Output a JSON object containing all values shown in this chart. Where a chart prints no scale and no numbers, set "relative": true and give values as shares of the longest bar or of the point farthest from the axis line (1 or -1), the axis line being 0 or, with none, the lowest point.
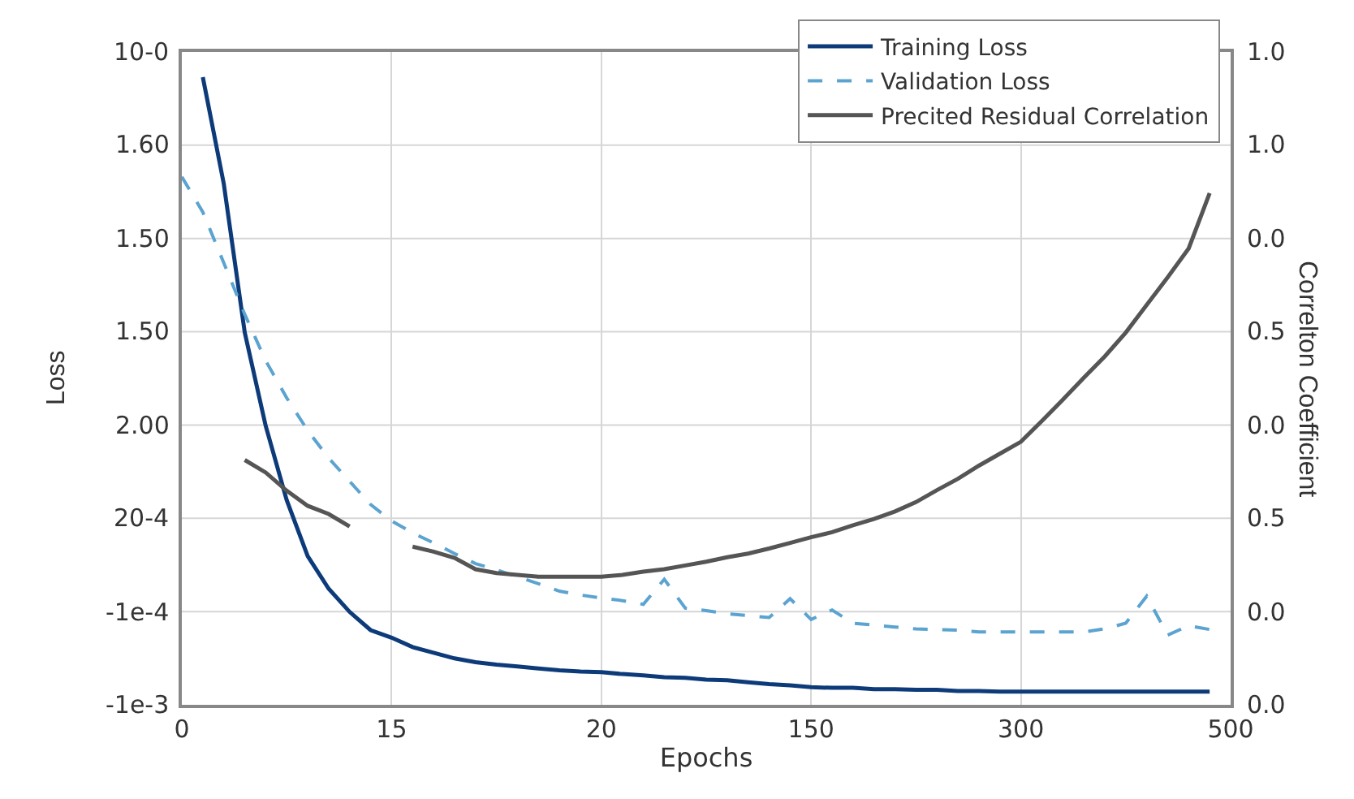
{
  "chart_data": {
    "type": "line",
    "xlabel": "Epochs",
    "ylabel": "Loss",
    "y2label": "Correlton Coefficient",
    "relative": true,
    "categories": [
      "0",
      null,
      null,
      null,
      null,
      null,
      null,
      null,
      null,
      null,
      "15",
      null,
      null,
      null,
      null,
      null,
      null,
      null,
      null,
      null,
      "20",
      null,
      null,
      null,
      null,
      null,
      null,
      null,
      null,
      null,
      "150",
      null,
      null,
      null,
      null,
      null,
      null,
      null,
      null,
      null,
      "300",
      null,
      null,
      null,
      null,
      null,
      null,
      null,
      null,
      null,
      "500"
    ],
    "annotations": [
      "10-0",
      "1.60",
      "1.50",
      "1.50",
      "2.00",
      "20-4",
      "-1e-4",
      "-1e-3",
      "1.0",
      "1.0",
      "0.0",
      "0.5",
      "0.0",
      "0.5",
      "0.0",
      "0.0"
    ],
    "grid": true,
    "legend": "top right",
    "marker": "none",
    "series": [
      {
        "name": "Training Loss",
        "color": "#0d3b7a",
        "line_style": "solid",
        "values": [
          null,
          1.0,
          0.83,
          0.593,
          0.444,
          0.326,
          0.237,
          0.185,
          0.148,
          0.119,
          0.107,
          0.092,
          0.083,
          0.074,
          0.068,
          0.064,
          0.061,
          0.058,
          0.055,
          0.053,
          0.052,
          0.049,
          0.047,
          0.044,
          0.043,
          0.04,
          0.039,
          0.036,
          0.033,
          0.031,
          0.028,
          0.027,
          0.027,
          0.025,
          0.025,
          0.024,
          0.024,
          0.022,
          0.022,
          0.021,
          0.021,
          0.021,
          0.021,
          0.021,
          0.021,
          0.021,
          0.021,
          0.021,
          0.021,
          0.021,
          null
        ]
      },
      {
        "name": "Validation Loss",
        "color": "#5ba3d0",
        "line_style": "dashed",
        "values": [
          0.841,
          0.785,
          0.704,
          0.622,
          0.548,
          0.489,
          0.437,
          0.393,
          0.356,
          0.319,
          0.293,
          0.274,
          0.258,
          0.241,
          0.225,
          0.215,
          0.204,
          0.193,
          0.181,
          0.175,
          0.17,
          0.166,
          0.16,
          0.2,
          0.154,
          0.15,
          0.145,
          0.142,
          0.139,
          0.169,
          0.136,
          0.151,
          0.13,
          0.127,
          0.124,
          0.121,
          0.12,
          0.119,
          0.116,
          0.116,
          0.116,
          0.116,
          0.116,
          0.116,
          0.121,
          0.13,
          0.173,
          0.111,
          0.126,
          0.12,
          null
        ]
      },
      {
        "name": "Precited Residual Correlation",
        "color": "#555555",
        "line_style": "solid",
        "values": [
          null,
          null,
          null,
          0.39,
          0.37,
          0.341,
          0.317,
          0.304,
          0.284,
          null,
          null,
          0.252,
          0.244,
          0.234,
          0.216,
          0.21,
          0.207,
          0.204,
          0.204,
          0.204,
          0.204,
          0.207,
          0.212,
          0.216,
          0.222,
          0.228,
          0.235,
          0.241,
          0.249,
          0.258,
          0.267,
          0.275,
          0.286,
          0.296,
          0.308,
          0.323,
          0.342,
          0.36,
          0.381,
          0.4,
          0.419,
          0.452,
          0.486,
          0.521,
          0.555,
          0.593,
          0.637,
          0.681,
          0.727,
          0.815,
          null
        ]
      }
    ]
  }
}
